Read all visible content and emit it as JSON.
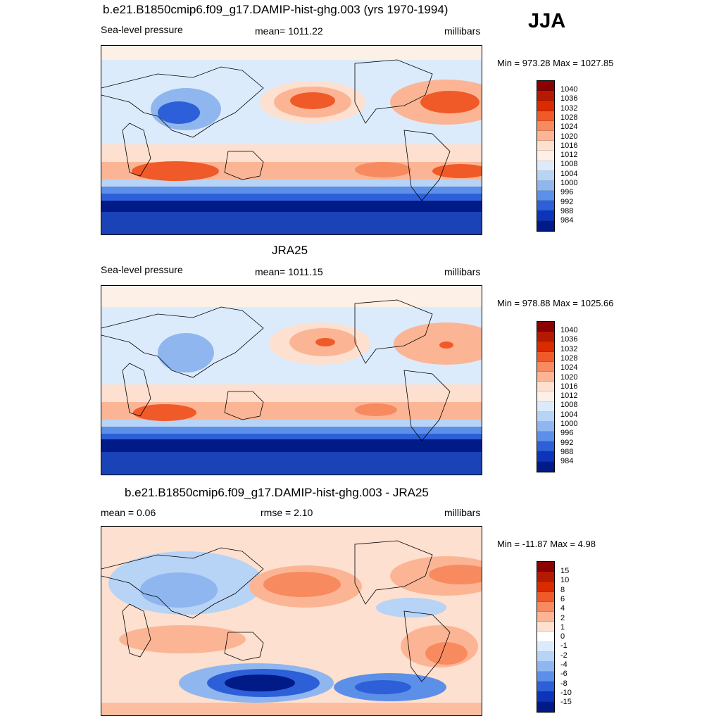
{
  "season": "JJA",
  "panels": [
    {
      "title": "b.e21.B1850cmip6.f09_g17.DAMIP-hist-ghg.003 (yrs 1970-1994)",
      "left_label": "Sea-level pressure",
      "center_label": "mean= 1011.22",
      "right_label": "millibars",
      "minmax": "Min = 973.28 Max = 1027.85",
      "colorbar_labels": [
        "1040",
        "1036",
        "1032",
        "1028",
        "1024",
        "1020",
        "1016",
        "1012",
        "1008",
        "1004",
        "1000",
        "996",
        "992",
        "988",
        "984"
      ],
      "colors": [
        "#8b0000",
        "#b51a00",
        "#d92a00",
        "#f05a28",
        "#f88a60",
        "#fbb595",
        "#fde0cf",
        "#fdf0e6",
        "#dcebfb",
        "#b7d3f5",
        "#8fb6ef",
        "#5c8fe8",
        "#2c5fd8",
        "#0c34b8",
        "#001a88"
      ]
    },
    {
      "title": "JRA25",
      "left_label": "Sea-level pressure",
      "center_label": "mean= 1011.15",
      "right_label": "millibars",
      "minmax": "Min = 978.88 Max = 1025.66",
      "colorbar_labels": [
        "1040",
        "1036",
        "1032",
        "1028",
        "1024",
        "1020",
        "1016",
        "1012",
        "1008",
        "1004",
        "1000",
        "996",
        "992",
        "988",
        "984"
      ],
      "colors": [
        "#8b0000",
        "#b51a00",
        "#d92a00",
        "#f05a28",
        "#f88a60",
        "#fbb595",
        "#fde0cf",
        "#fdf0e6",
        "#dcebfb",
        "#b7d3f5",
        "#8fb6ef",
        "#5c8fe8",
        "#2c5fd8",
        "#0c34b8",
        "#001a88"
      ]
    },
    {
      "title": "b.e21.B1850cmip6.f09_g17.DAMIP-hist-ghg.003 - JRA25",
      "left_label": "mean =   0.06",
      "center_label": "rmse =   2.10",
      "right_label": "millibars",
      "minmax": "Min = -11.87 Max =   4.98",
      "colorbar_labels": [
        "15",
        "10",
        "8",
        "6",
        "4",
        "2",
        "1",
        "0",
        "-1",
        "-2",
        "-4",
        "-6",
        "-8",
        "-10",
        "-15"
      ],
      "colors": [
        "#8b0000",
        "#b51a00",
        "#d92a00",
        "#f05a28",
        "#f88a60",
        "#fbb595",
        "#fde0cf",
        "#ffffff",
        "#dcebfb",
        "#b7d3f5",
        "#8fb6ef",
        "#5c8fe8",
        "#2c5fd8",
        "#0c34b8",
        "#001a88"
      ]
    }
  ]
}
